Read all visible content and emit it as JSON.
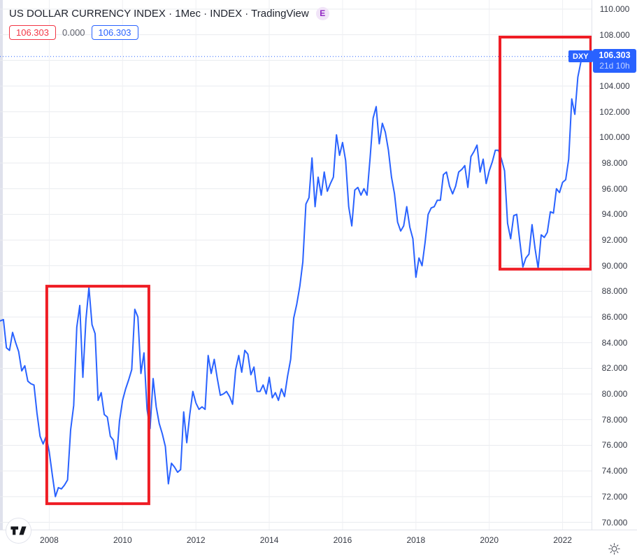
{
  "header": {
    "title": "US DOLLAR CURRENCY INDEX · 1Mec · INDEX · TradingView",
    "exchange_badge": "E"
  },
  "legend": {
    "open_value": "106.303",
    "change_value": "0.000",
    "close_value": "106.303"
  },
  "price_marker": {
    "symbol": "DXY",
    "price": "106.303",
    "countdown": "21d 10h"
  },
  "icons": {
    "theme_icon": "sun-icon",
    "logo_icon": "tradingview-logo"
  },
  "colors": {
    "line": "#2962ff",
    "badge_blue": "#2962ff",
    "legend_red": "#f23645",
    "annotation_red": "#ef1d25",
    "grid_h": "#e9ebef",
    "grid_v": "#eff0f3",
    "axis_text": "#363a45",
    "tick_mark": "#b2b5be"
  },
  "chart_data": {
    "type": "line",
    "title": "US DOLLAR CURRENCY INDEX",
    "x_start": "2006-09",
    "interval": "monthly",
    "ylim": [
      70,
      110
    ],
    "y_tick_step": 2,
    "grid": true,
    "legend_position": "top-left",
    "y_ticks": [
      "110.000",
      "108.000",
      "106.000",
      "104.000",
      "102.000",
      "100.000",
      "98.000",
      "96.000",
      "94.000",
      "92.000",
      "90.000",
      "88.000",
      "86.000",
      "84.000",
      "82.000",
      "80.000",
      "78.000",
      "76.000",
      "74.000",
      "72.000",
      "70.000"
    ],
    "x_ticks": [
      "2008",
      "2010",
      "2012",
      "2014",
      "2016",
      "2018",
      "2020",
      "2022"
    ],
    "current_price": 106.303,
    "series": [
      {
        "name": "DXY",
        "values": [
          85.7,
          85.8,
          83.6,
          83.4,
          84.8,
          84.0,
          83.3,
          81.8,
          82.2,
          81.0,
          80.8,
          80.7,
          78.5,
          76.7,
          76.1,
          76.7,
          75.5,
          73.7,
          72.0,
          72.7,
          72.6,
          72.9,
          73.3,
          77.2,
          79.1,
          85.2,
          86.9,
          81.3,
          85.8,
          88.3,
          85.4,
          84.7,
          79.5,
          80.1,
          78.4,
          78.2,
          76.7,
          76.4,
          74.9,
          77.9,
          79.5,
          80.4,
          81.1,
          81.9,
          86.6,
          86.0,
          81.6,
          83.2,
          78.8,
          77.3,
          81.2,
          79.0,
          77.7,
          76.9,
          75.9,
          73.0,
          74.6,
          74.3,
          73.9,
          74.1,
          78.6,
          76.2,
          78.4,
          80.2,
          79.3,
          78.8,
          79.0,
          78.8,
          83.0,
          81.6,
          82.7,
          81.2,
          79.9,
          80.0,
          80.2,
          79.8,
          79.2,
          81.9,
          83.0,
          81.7,
          83.4,
          83.1,
          81.5,
          82.1,
          80.2,
          80.2,
          80.7,
          80.0,
          81.3,
          79.7,
          80.1,
          79.5,
          80.4,
          79.8,
          81.4,
          82.7,
          85.9,
          87.0,
          88.4,
          90.3,
          94.8,
          95.3,
          98.4,
          94.6,
          96.9,
          95.5,
          97.3,
          95.8,
          96.4,
          96.9,
          100.2,
          98.6,
          99.6,
          98.2,
          94.6,
          93.1,
          95.9,
          96.1,
          95.5,
          96.0,
          95.5,
          98.4,
          101.5,
          102.4,
          99.5,
          101.1,
          100.4,
          99.0,
          96.9,
          95.6,
          93.4,
          92.7,
          93.1,
          94.6,
          93.0,
          92.1,
          89.1,
          90.6,
          90.0,
          91.8,
          94.0,
          94.5,
          94.6,
          95.1,
          95.1,
          97.1,
          97.3,
          96.2,
          95.6,
          96.2,
          97.3,
          97.5,
          97.8,
          96.1,
          98.5,
          98.9,
          99.4,
          97.3,
          98.3,
          96.4,
          97.4,
          98.1,
          99.0,
          99.0,
          98.3,
          97.4,
          93.3,
          92.1,
          93.9,
          94.0,
          91.9,
          89.9,
          90.6,
          90.9,
          93.2,
          91.3,
          89.8,
          92.4,
          92.2,
          92.6,
          94.2,
          94.1,
          96.0,
          95.7,
          96.5,
          96.7,
          98.3,
          103.0,
          101.8,
          104.7,
          105.9,
          106.303
        ]
      }
    ],
    "annotations": {
      "boxes": [
        {
          "month_start": 15.2,
          "month_end": 48.6,
          "value_top": 88.4,
          "value_bottom": 71.45
        },
        {
          "month_start": 163.5,
          "month_end": 193.2,
          "value_top": 107.82,
          "value_bottom": 89.73
        }
      ]
    }
  }
}
